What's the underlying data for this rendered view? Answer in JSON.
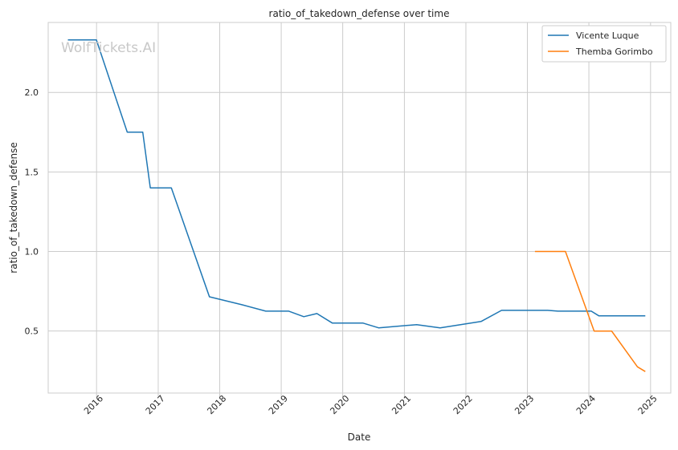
{
  "watermark": "WolfTickets.AI",
  "chart_data": {
    "type": "line",
    "title": "ratio_of_takedown_defense over time",
    "xlabel": "Date",
    "ylabel": "ratio_of_takedown_defense",
    "x_ticks": [
      "2016",
      "2017",
      "2018",
      "2019",
      "2020",
      "2021",
      "2022",
      "2023",
      "2024",
      "2025"
    ],
    "y_ticks": [
      "0.5",
      "1.0",
      "1.5",
      "2.0"
    ],
    "xlim": [
      "2015-03-20",
      "2025-05-01"
    ],
    "ylim": [
      0.11,
      2.44
    ],
    "grid": true,
    "legend_position": "top-right",
    "series": [
      {
        "name": "Vicente Luque",
        "color": "#1f77b4",
        "points": [
          [
            "2015-07-15",
            2.33
          ],
          [
            "2015-12-31",
            2.33
          ],
          [
            "2016-07-01",
            1.75
          ],
          [
            "2016-10-01",
            1.75
          ],
          [
            "2016-11-15",
            1.4
          ],
          [
            "2017-03-20",
            1.4
          ],
          [
            "2017-11-01",
            0.715
          ],
          [
            "2018-05-15",
            0.665
          ],
          [
            "2018-10-01",
            0.625
          ],
          [
            "2019-02-15",
            0.625
          ],
          [
            "2019-05-15",
            0.59
          ],
          [
            "2019-08-01",
            0.61
          ],
          [
            "2019-11-01",
            0.55
          ],
          [
            "2020-05-01",
            0.55
          ],
          [
            "2020-08-01",
            0.52
          ],
          [
            "2021-03-15",
            0.54
          ],
          [
            "2021-08-01",
            0.52
          ],
          [
            "2022-04-01",
            0.56
          ],
          [
            "2022-08-01",
            0.63
          ],
          [
            "2023-05-01",
            0.63
          ],
          [
            "2023-07-01",
            0.625
          ],
          [
            "2024-01-15",
            0.625
          ],
          [
            "2024-03-01",
            0.595
          ],
          [
            "2024-12-01",
            0.595
          ]
        ]
      },
      {
        "name": "Themba Gorimbo",
        "color": "#ff7f0e",
        "points": [
          [
            "2023-02-15",
            1.0
          ],
          [
            "2023-08-15",
            1.0
          ],
          [
            "2024-02-01",
            0.5
          ],
          [
            "2024-05-15",
            0.5
          ],
          [
            "2024-10-15",
            0.275
          ],
          [
            "2024-12-01",
            0.245
          ]
        ]
      }
    ]
  }
}
